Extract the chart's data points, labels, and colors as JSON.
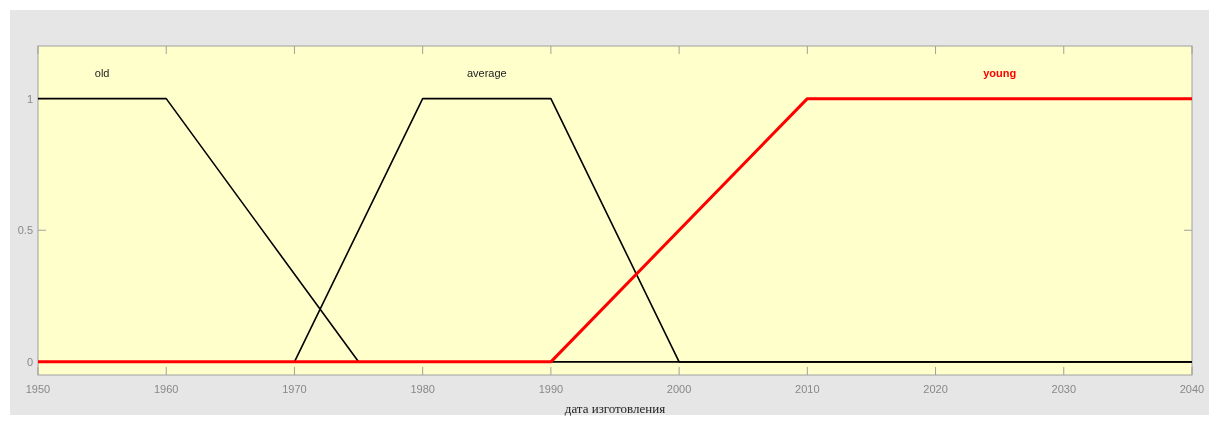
{
  "chart_data": {
    "type": "line",
    "xlabel": "дата изготовления",
    "series": [
      {
        "name": "old",
        "color": "#000000",
        "x": [
          1950,
          1960,
          1975,
          2040
        ],
        "values": [
          1,
          1,
          0,
          0
        ]
      },
      {
        "name": "average",
        "color": "#000000",
        "x": [
          1950,
          1970,
          1980,
          1990,
          2000,
          2040
        ],
        "values": [
          0,
          0,
          1,
          1,
          0,
          0
        ]
      },
      {
        "name": "young",
        "color": "#ff0000",
        "x": [
          1950,
          1990,
          2010,
          2040
        ],
        "values": [
          0,
          0,
          1,
          1
        ]
      }
    ],
    "xlim": [
      1950,
      2040
    ],
    "xticks": [
      1950,
      1960,
      1970,
      1980,
      1990,
      2000,
      2010,
      2020,
      2030,
      2040
    ],
    "ylim": [
      -0.05,
      1.2
    ],
    "yticks": [
      0,
      0.5,
      1
    ],
    "grid": false,
    "legend": false,
    "marker": "none",
    "line_style": "solid"
  }
}
